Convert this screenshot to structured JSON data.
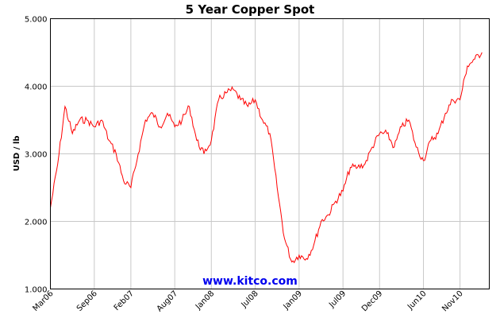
{
  "chart_data": {
    "type": "line",
    "title": "5 Year Copper Spot",
    "xlabel": "",
    "ylabel": "USD / lb",
    "watermark": "www.kitco.com",
    "ylim": [
      1.0,
      5.0
    ],
    "yticks": [
      1.0,
      2.0,
      3.0,
      4.0,
      5.0
    ],
    "ytick_labels": [
      "1.000",
      "2.000",
      "3.000",
      "4.000",
      "5.000"
    ],
    "xlim": [
      "2006-03",
      "2011-03"
    ],
    "xticks": [
      {
        "label": "Mar06",
        "x": "2006-03"
      },
      {
        "label": "Sep06",
        "x": "2006-09"
      },
      {
        "label": "Feb07",
        "x": "2007-02"
      },
      {
        "label": "Aug07",
        "x": "2007-08"
      },
      {
        "label": "Jan08",
        "x": "2008-01"
      },
      {
        "label": "Jul08",
        "x": "2008-07"
      },
      {
        "label": "Jan09",
        "x": "2009-01"
      },
      {
        "label": "Jul09",
        "x": "2009-07"
      },
      {
        "label": "Dec09",
        "x": "2009-12"
      },
      {
        "label": "Jun10",
        "x": "2010-06"
      },
      {
        "label": "Nov10",
        "x": "2010-11"
      }
    ],
    "grid": true,
    "series_color": "#ff0000",
    "series": [
      {
        "x": [
          "2006-03",
          "2006-04",
          "2006-05",
          "2006-06",
          "2006-07",
          "2006-08",
          "2006-09",
          "2006-10",
          "2006-11",
          "2006-12",
          "2007-01",
          "2007-02",
          "2007-03",
          "2007-04",
          "2007-05",
          "2007-06",
          "2007-07",
          "2007-08",
          "2007-09",
          "2007-10",
          "2007-11",
          "2007-12",
          "2008-01",
          "2008-02",
          "2008-03",
          "2008-04",
          "2008-05",
          "2008-06",
          "2008-07",
          "2008-08",
          "2008-09",
          "2008-10",
          "2008-11",
          "2008-12",
          "2009-01",
          "2009-02",
          "2009-03",
          "2009-04",
          "2009-05",
          "2009-06",
          "2009-07",
          "2009-08",
          "2009-09",
          "2009-10",
          "2009-11",
          "2009-12",
          "2010-01",
          "2010-02",
          "2010-03",
          "2010-04",
          "2010-05",
          "2010-06",
          "2010-07",
          "2010-08",
          "2010-09",
          "2010-10",
          "2010-11",
          "2010-12",
          "2011-01",
          "2011-02"
        ],
        "values": [
          2.2,
          2.85,
          3.7,
          3.3,
          3.5,
          3.5,
          3.4,
          3.5,
          3.2,
          3.0,
          2.6,
          2.5,
          3.0,
          3.5,
          3.6,
          3.4,
          3.6,
          3.4,
          3.5,
          3.7,
          3.2,
          3.0,
          3.2,
          3.8,
          3.9,
          3.95,
          3.8,
          3.7,
          3.8,
          3.5,
          3.3,
          2.5,
          1.75,
          1.4,
          1.5,
          1.45,
          1.65,
          2.0,
          2.1,
          2.3,
          2.45,
          2.8,
          2.8,
          2.85,
          3.1,
          3.3,
          3.3,
          3.1,
          3.4,
          3.5,
          3.1,
          2.9,
          3.2,
          3.3,
          3.6,
          3.8,
          3.8,
          4.3,
          4.4,
          4.5
        ]
      }
    ]
  }
}
